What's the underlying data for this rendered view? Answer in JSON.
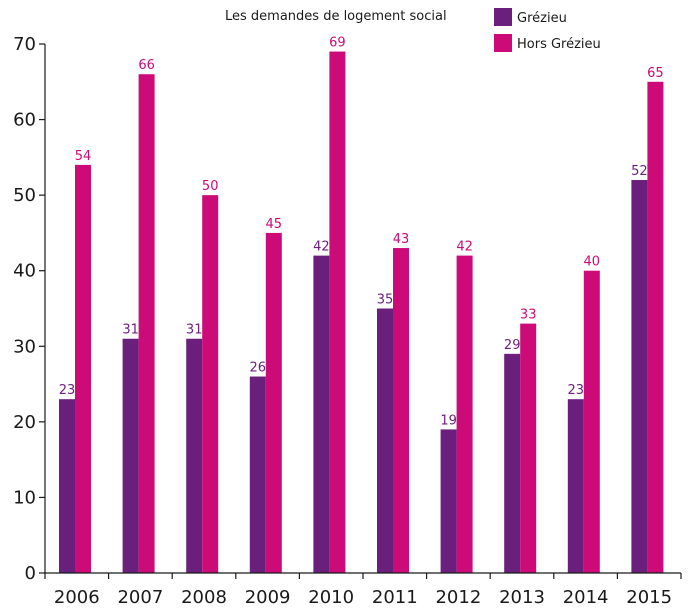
{
  "chart_data": {
    "type": "bar",
    "title": "Les demandes de logement social",
    "categories": [
      "2006",
      "2007",
      "2008",
      "2009",
      "2010",
      "2011",
      "2012",
      "2013",
      "2014",
      "2015"
    ],
    "series": [
      {
        "name": "Grézieu",
        "color": "#6b1f7c",
        "values": [
          23,
          31,
          31,
          26,
          42,
          35,
          19,
          29,
          23,
          52
        ]
      },
      {
        "name": "Hors Grézieu",
        "color": "#cc0a78",
        "values": [
          54,
          66,
          50,
          45,
          69,
          43,
          42,
          33,
          40,
          65
        ]
      }
    ],
    "ylim": [
      0,
      70
    ],
    "yticks": [
      0,
      10,
      20,
      30,
      40,
      50,
      60,
      70
    ],
    "grid": false,
    "legend_position": "top-right",
    "data_labels": true
  }
}
